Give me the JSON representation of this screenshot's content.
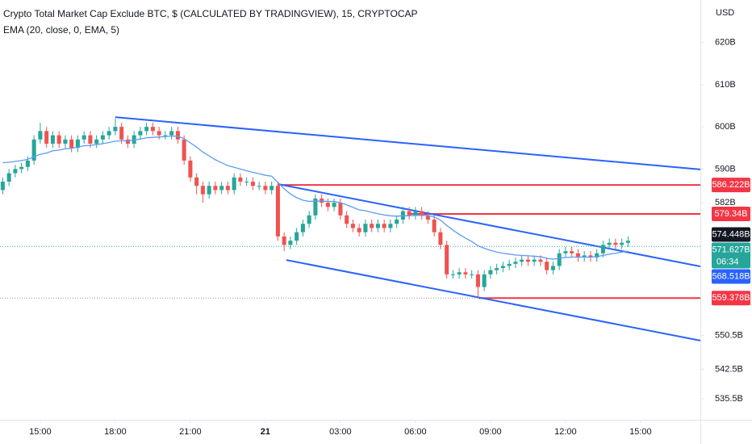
{
  "chart_data": {
    "type": "candlestick",
    "title": "Crypto Total Market Cap Exclude BTC, $ (CALCULATED BY TRADINGVIEW), 15, CRYPTOCAP",
    "subtitle": "EMA (20, close, 0, EMA, 5)",
    "currency": "USD",
    "up_color": "#26a69a",
    "down_color": "#ef5350",
    "grid": false,
    "xlim": [
      13.39,
      41.39
    ],
    "xticks": [
      {
        "value": 15,
        "label": "15:00"
      },
      {
        "value": 18,
        "label": "18:00"
      },
      {
        "value": 21,
        "label": "21:00"
      },
      {
        "value": 24,
        "label": "21"
      },
      {
        "value": 27,
        "label": "03:00"
      },
      {
        "value": 30,
        "label": "06:00"
      },
      {
        "value": 33,
        "label": "09:00"
      },
      {
        "value": 36,
        "label": "12:00"
      },
      {
        "value": 39,
        "label": "15:00"
      }
    ],
    "ylim": [
      530.5,
      630.1
    ],
    "yticks": [
      {
        "value": 620,
        "label": "620B"
      },
      {
        "value": 610,
        "label": "610B"
      },
      {
        "value": 600,
        "label": "600B"
      },
      {
        "value": 590,
        "label": "590B"
      },
      {
        "value": 582,
        "label": "582B"
      },
      {
        "value": 550.5,
        "label": "550.5B"
      },
      {
        "value": 542.5,
        "label": "542.5B"
      },
      {
        "value": 535.5,
        "label": "535.5B"
      }
    ],
    "x": [
      13.5,
      13.75,
      14,
      14.25,
      14.5,
      14.75,
      15,
      15.25,
      15.5,
      15.75,
      16,
      16.25,
      16.5,
      16.75,
      17,
      17.25,
      17.5,
      17.75,
      18,
      18.25,
      18.5,
      18.75,
      19,
      19.25,
      19.5,
      19.75,
      20,
      20.25,
      20.5,
      20.75,
      21,
      21.25,
      21.5,
      21.75,
      22,
      22.25,
      22.5,
      22.75,
      23,
      23.25,
      23.5,
      23.75,
      24,
      24.25,
      24.5,
      24.75,
      25,
      25.25,
      25.5,
      25.75,
      26,
      26.25,
      26.5,
      26.75,
      27,
      27.25,
      27.5,
      27.75,
      28,
      28.25,
      28.5,
      28.75,
      29,
      29.25,
      29.5,
      29.75,
      30,
      30.25,
      30.5,
      30.75,
      31,
      31.25,
      31.5,
      31.75,
      32,
      32.25,
      32.5,
      32.75,
      33,
      33.25,
      33.5,
      33.75,
      34,
      34.25,
      34.5,
      34.75,
      35,
      35.25,
      35.5,
      35.75,
      36,
      36.25,
      36.5,
      36.75,
      37,
      37.25,
      37.5,
      37.75,
      38,
      38.25,
      38.5
    ],
    "open": [
      585,
      587,
      589,
      590,
      590.5,
      592,
      597,
      599,
      596,
      598,
      596,
      597,
      595,
      597,
      598,
      596,
      597,
      598,
      599,
      600,
      597,
      596,
      598,
      599,
      600,
      599,
      598,
      598,
      599,
      597,
      592,
      588,
      586,
      584,
      586,
      585,
      586,
      585,
      588,
      587,
      587,
      586,
      586,
      585,
      586,
      574,
      572,
      573,
      575,
      577,
      579,
      583,
      582,
      581,
      582,
      579,
      577,
      576,
      575,
      577,
      576,
      577,
      576,
      577,
      578,
      580,
      579,
      580,
      579,
      578,
      575,
      572,
      565,
      565,
      565.5,
      565,
      565,
      562,
      565,
      566,
      566.5,
      567,
      567.5,
      568,
      568.5,
      568,
      568.5,
      568,
      566,
      567,
      570,
      570.5,
      570,
      569,
      569.5,
      569,
      570,
      572,
      572.5,
      572,
      572.5
    ],
    "high": [
      588,
      590,
      591,
      591.5,
      593,
      598,
      601,
      600,
      599,
      599,
      598,
      598,
      598,
      599,
      599,
      598,
      599,
      600,
      602,
      601,
      598,
      599,
      600,
      601,
      601,
      600,
      599,
      600,
      600,
      598,
      593,
      589,
      587,
      587,
      587,
      587,
      587,
      589,
      589,
      588,
      588,
      587,
      587,
      587,
      587,
      575,
      574,
      576,
      578,
      580,
      584,
      584,
      583,
      583,
      583,
      580,
      578,
      577,
      578,
      578,
      578,
      578,
      578,
      579,
      581,
      581,
      581,
      581,
      580,
      579,
      576,
      573,
      566,
      566.5,
      566.5,
      566,
      566,
      566,
      567,
      567.5,
      568,
      568.5,
      569,
      569.5,
      569.5,
      569.5,
      569.5,
      569,
      568,
      571,
      571.5,
      571.5,
      571,
      570.5,
      570.5,
      571,
      573,
      573.5,
      573.5,
      573.5,
      574
    ],
    "low": [
      584,
      586,
      588,
      589,
      589.5,
      591,
      596,
      595,
      595,
      595,
      595,
      594,
      594,
      596,
      595,
      595,
      596,
      597,
      598,
      596,
      595,
      595,
      597,
      598,
      598,
      597,
      597,
      597,
      596,
      591,
      587,
      584,
      582,
      583,
      584,
      584,
      584,
      584,
      586,
      586,
      585,
      585,
      584,
      584,
      573,
      570.5,
      571,
      572,
      574,
      576,
      578,
      581,
      580,
      580,
      578,
      576,
      575,
      574,
      574,
      575,
      575,
      575,
      575,
      576,
      577,
      578,
      578,
      578,
      577,
      574,
      571,
      564,
      564,
      564,
      564,
      564,
      559.4,
      561,
      564,
      565,
      565.5,
      566,
      566.5,
      567,
      567,
      567,
      567,
      565,
      565,
      566,
      569,
      569,
      568,
      568,
      568,
      568,
      569,
      571,
      571,
      571,
      571.5
    ],
    "close": [
      587,
      589,
      590,
      590.5,
      592,
      597,
      599,
      596,
      598,
      596,
      597,
      595,
      597,
      598,
      596,
      597,
      598,
      599,
      600,
      597,
      596,
      598,
      599,
      600,
      599,
      598,
      598,
      599,
      597,
      592,
      588,
      586,
      584,
      586,
      585,
      586,
      585,
      588,
      587,
      587,
      586,
      586,
      585,
      586,
      574,
      572,
      573,
      575,
      577,
      579,
      583,
      582,
      581,
      582,
      579,
      577,
      576,
      575,
      577,
      576,
      577,
      576,
      577,
      578,
      580,
      579,
      580,
      579,
      578,
      575,
      572,
      565,
      565,
      565.5,
      565,
      565,
      562,
      565,
      566,
      566.5,
      567,
      567.5,
      568,
      568.5,
      568,
      568.5,
      568,
      566,
      567,
      570,
      570.5,
      570,
      569,
      569.5,
      569,
      570,
      572,
      572.5,
      572,
      572.5,
      573
    ],
    "ema": {
      "color": "#5b9cf6",
      "values": [
        591.5,
        591.6,
        591.8,
        592,
        592.3,
        592.9,
        593.5,
        593.8,
        594.3,
        594.5,
        594.8,
        594.9,
        595.2,
        595.5,
        595.6,
        595.8,
        596,
        596.3,
        596.6,
        596.7,
        596.7,
        596.9,
        597.1,
        597.4,
        597.5,
        597.6,
        597.7,
        597.8,
        597.8,
        597.2,
        596.2,
        595.2,
        594,
        593.1,
        592.2,
        591.5,
        590.8,
        590.4,
        590,
        589.6,
        589.2,
        588.9,
        588.5,
        588.3,
        586.8,
        585.3,
        584.1,
        583.2,
        582.6,
        582.3,
        582.4,
        582.4,
        582.3,
        582.3,
        582,
        581.5,
        580.9,
        580.3,
        580.1,
        579.7,
        579.4,
        579.1,
        578.9,
        578.8,
        578.9,
        578.9,
        579,
        579,
        579,
        578.6,
        577.9,
        576.6,
        575.5,
        574.5,
        573.6,
        572.8,
        571.8,
        571.2,
        570.7,
        570.3,
        570,
        569.8,
        569.6,
        569.5,
        569.4,
        569.3,
        569.2,
        568.8,
        568.6,
        568.8,
        569,
        569.1,
        569.1,
        569.1,
        569.1,
        569.2,
        569.5,
        569.8,
        570,
        570.3,
        570.5
      ]
    },
    "trendlines": [
      {
        "color": "#2962ff",
        "x": [
          18,
          41.39
        ],
        "y": [
          602.3,
          589.9
        ]
      },
      {
        "color": "#2962ff",
        "x": [
          24.52,
          41.39
        ],
        "y": [
          586.4,
          566.9
        ]
      },
      {
        "color": "#2962ff",
        "x": [
          24.84,
          41.39
        ],
        "y": [
          568.4,
          549.3
        ]
      }
    ],
    "levels": [
      {
        "value": 586.222,
        "label": "586.222B",
        "color": "#f23645",
        "from": 24.52,
        "left_dotted": false
      },
      {
        "value": 579.34,
        "label": "579.34B",
        "color": "#f23645",
        "from": 29.68,
        "left_dotted": false
      },
      {
        "value": 559.378,
        "label": "559.378B",
        "color": "#f23645",
        "from": 32.52,
        "left_dotted": true
      }
    ],
    "price_labels": [
      {
        "value": 574.448,
        "label": "574.448B",
        "color": "#131722",
        "line": false
      },
      {
        "value": 571.627,
        "label": "571.627B",
        "color": "#26a69a",
        "line": true,
        "countdown": "06:34"
      },
      {
        "value": 568.518,
        "label": "568.518B",
        "color": "#2962ff",
        "line": false
      }
    ]
  }
}
